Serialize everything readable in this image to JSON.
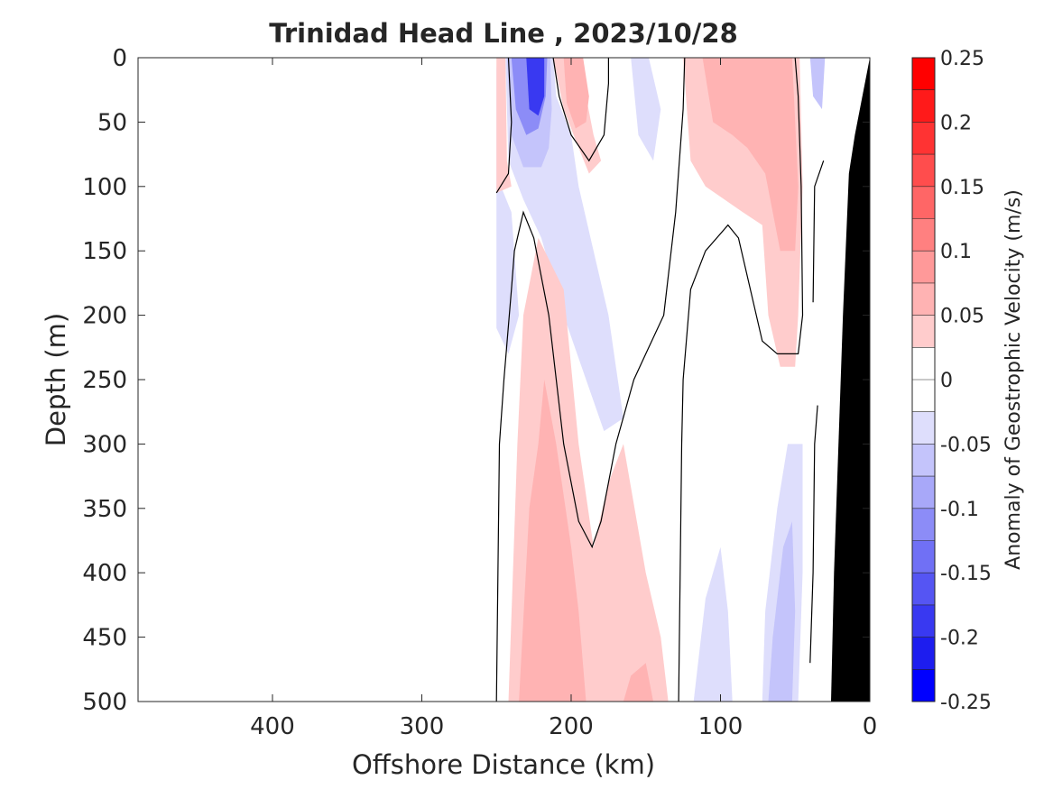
{
  "chart_data": {
    "type": "heatmap",
    "title": "Trinidad Head Line , 2023/10/28",
    "xlabel": "Offshore Distance (km)",
    "ylabel": "Depth (m)",
    "colorbar_label": "Anomaly of Geostrophic Velocity (m/s)",
    "x_reversed": true,
    "xlim": [
      490,
      0
    ],
    "ylim": [
      0,
      500
    ],
    "y_reversed": true,
    "x_ticks": [
      400,
      300,
      200,
      100,
      0
    ],
    "y_ticks": [
      0,
      50,
      100,
      150,
      200,
      250,
      300,
      350,
      400,
      450,
      500
    ],
    "colorbar_ticks": [
      0.25,
      0.2,
      0.15,
      0.1,
      0.05,
      0,
      -0.05,
      -0.1,
      -0.15,
      -0.2,
      -0.25
    ],
    "colorbar_levels": [
      {
        "from": 0.225,
        "to": 0.25,
        "color": "#ff0000"
      },
      {
        "from": 0.2,
        "to": 0.225,
        "color": "#ff1a1a"
      },
      {
        "from": 0.175,
        "to": 0.2,
        "color": "#ff3333"
      },
      {
        "from": 0.15,
        "to": 0.175,
        "color": "#ff4d4d"
      },
      {
        "from": 0.125,
        "to": 0.15,
        "color": "#ff6666"
      },
      {
        "from": 0.1,
        "to": 0.125,
        "color": "#ff8080"
      },
      {
        "from": 0.075,
        "to": 0.1,
        "color": "#ff9999"
      },
      {
        "from": 0.05,
        "to": 0.075,
        "color": "#ffb3b3"
      },
      {
        "from": 0.025,
        "to": 0.05,
        "color": "#ffcccc"
      },
      {
        "from": 0.0,
        "to": 0.025,
        "color": "#ffffff"
      },
      {
        "from": -0.025,
        "to": 0.0,
        "color": "#ffffff"
      },
      {
        "from": -0.05,
        "to": -0.025,
        "color": "#dedefc"
      },
      {
        "from": -0.075,
        "to": -0.05,
        "color": "#c4c4fb"
      },
      {
        "from": -0.1,
        "to": -0.075,
        "color": "#a8a8f9"
      },
      {
        "from": -0.125,
        "to": -0.1,
        "color": "#8c8cf7"
      },
      {
        "from": -0.15,
        "to": -0.125,
        "color": "#7070f5"
      },
      {
        "from": -0.175,
        "to": -0.15,
        "color": "#5555f3"
      },
      {
        "from": -0.2,
        "to": -0.175,
        "color": "#3939f1"
      },
      {
        "from": -0.225,
        "to": -0.2,
        "color": "#1d1def"
      },
      {
        "from": -0.25,
        "to": -0.225,
        "color": "#0000ff"
      }
    ],
    "bathymetry_color": "#000000",
    "regions": [
      {
        "name": "coastal-negative-strip",
        "color": "#dedefc",
        "points": [
          [
            250,
            5
          ],
          [
            247,
            100
          ],
          [
            240,
            120
          ],
          [
            235,
            200
          ],
          [
            242,
            230
          ],
          [
            250,
            210
          ]
        ]
      },
      {
        "name": "offshore-positive-edge",
        "color": "#ffcccc",
        "points": [
          [
            250,
            0
          ],
          [
            244,
            0
          ],
          [
            243,
            80
          ],
          [
            240,
            100
          ],
          [
            250,
            105
          ]
        ]
      },
      {
        "name": "main-negative-eddy-outer",
        "color": "#dedefc",
        "points": [
          [
            244,
            0
          ],
          [
            212,
            0
          ],
          [
            210,
            30
          ],
          [
            200,
            60
          ],
          [
            195,
            100
          ],
          [
            185,
            150
          ],
          [
            175,
            200
          ],
          [
            170,
            240
          ],
          [
            165,
            280
          ],
          [
            178,
            290
          ],
          [
            190,
            250
          ],
          [
            205,
            200
          ],
          [
            220,
            140
          ],
          [
            232,
            110
          ],
          [
            242,
            80
          ]
        ]
      },
      {
        "name": "main-negative-eddy-mid",
        "color": "#c4c4fb",
        "points": [
          [
            243,
            0
          ],
          [
            214,
            0
          ],
          [
            213,
            40
          ],
          [
            215,
            70
          ],
          [
            220,
            85
          ],
          [
            232,
            85
          ],
          [
            240,
            60
          ]
        ]
      },
      {
        "name": "main-negative-eddy-inner",
        "color": "#8c8cf7",
        "points": [
          [
            240,
            0
          ],
          [
            216,
            0
          ],
          [
            217,
            30
          ],
          [
            222,
            55
          ],
          [
            230,
            60
          ],
          [
            237,
            40
          ]
        ]
      },
      {
        "name": "main-negative-eddy-core",
        "color": "#3939f1",
        "points": [
          [
            230,
            0
          ],
          [
            218,
            0
          ],
          [
            218,
            30
          ],
          [
            222,
            45
          ],
          [
            228,
            40
          ]
        ]
      },
      {
        "name": "positive-lobe-center-top",
        "color": "#ffcccc",
        "points": [
          [
            212,
            0
          ],
          [
            197,
            0
          ],
          [
            190,
            30
          ],
          [
            185,
            60
          ],
          [
            180,
            80
          ],
          [
            188,
            90
          ],
          [
            195,
            70
          ],
          [
            205,
            40
          ]
        ]
      },
      {
        "name": "positive-lobe-center-mid",
        "color": "#ffb3b3",
        "points": [
          [
            205,
            0
          ],
          [
            192,
            0
          ],
          [
            188,
            30
          ],
          [
            190,
            50
          ],
          [
            197,
            55
          ],
          [
            203,
            35
          ]
        ]
      },
      {
        "name": "positive-deep-lobe-outer",
        "color": "#ffcccc",
        "points": [
          [
            242,
            500
          ],
          [
            236,
            300
          ],
          [
            232,
            200
          ],
          [
            222,
            140
          ],
          [
            205,
            180
          ],
          [
            195,
            300
          ],
          [
            185,
            380
          ],
          [
            175,
            330
          ],
          [
            165,
            300
          ],
          [
            150,
            400
          ],
          [
            140,
            450
          ],
          [
            135,
            500
          ]
        ]
      },
      {
        "name": "positive-deep-lobe-mid",
        "color": "#ffb3b3",
        "points": [
          [
            235,
            500
          ],
          [
            228,
            350
          ],
          [
            222,
            300
          ],
          [
            218,
            250
          ],
          [
            210,
            300
          ],
          [
            200,
            380
          ],
          [
            195,
            430
          ],
          [
            190,
            500
          ]
        ]
      },
      {
        "name": "positive-deep-lobe-right",
        "color": "#ffb3b3",
        "points": [
          [
            165,
            500
          ],
          [
            160,
            480
          ],
          [
            150,
            470
          ],
          [
            145,
            500
          ]
        ]
      },
      {
        "name": "coastal-negative-deep-left",
        "color": "#dedefc",
        "points": [
          [
            118,
            500
          ],
          [
            110,
            420
          ],
          [
            100,
            380
          ],
          [
            95,
            430
          ],
          [
            92,
            500
          ]
        ]
      },
      {
        "name": "coastal-negative-deep-mid",
        "color": "#dedefc",
        "points": [
          [
            72,
            500
          ],
          [
            70,
            430
          ],
          [
            62,
            350
          ],
          [
            55,
            300
          ],
          [
            45,
            300
          ],
          [
            45,
            400
          ],
          [
            48,
            500
          ]
        ]
      },
      {
        "name": "coastal-negative-deep-core",
        "color": "#c4c4fb",
        "points": [
          [
            68,
            500
          ],
          [
            65,
            450
          ],
          [
            58,
            380
          ],
          [
            52,
            360
          ],
          [
            50,
            430
          ],
          [
            52,
            500
          ]
        ]
      },
      {
        "name": "coastal-positive-upper-outer",
        "color": "#ffcccc",
        "points": [
          [
            125,
            0
          ],
          [
            120,
            80
          ],
          [
            110,
            100
          ],
          [
            85,
            120
          ],
          [
            72,
            130
          ],
          [
            68,
            200
          ],
          [
            60,
            240
          ],
          [
            50,
            240
          ],
          [
            48,
            200
          ],
          [
            45,
            100
          ],
          [
            47,
            0
          ]
        ]
      },
      {
        "name": "coastal-positive-upper-mid",
        "color": "#ffb3b3",
        "points": [
          [
            112,
            0
          ],
          [
            105,
            50
          ],
          [
            92,
            60
          ],
          [
            82,
            70
          ],
          [
            70,
            90
          ],
          [
            60,
            150
          ],
          [
            50,
            150
          ],
          [
            48,
            100
          ],
          [
            52,
            0
          ]
        ]
      },
      {
        "name": "coastal-negative-upper-right",
        "color": "#dedefc",
        "points": [
          [
            148,
            0
          ],
          [
            140,
            40
          ],
          [
            145,
            80
          ],
          [
            155,
            60
          ],
          [
            160,
            0
          ]
        ]
      },
      {
        "name": "coastal-negative-top-right",
        "color": "#c4c4fb",
        "points": [
          [
            40,
            0
          ],
          [
            30,
            0
          ],
          [
            32,
            40
          ],
          [
            38,
            30
          ]
        ]
      }
    ],
    "zero_contours": [
      {
        "name": "zero-contour-offshore",
        "points": [
          [
            250,
            105
          ],
          [
            242,
            90
          ],
          [
            240,
            50
          ],
          [
            242,
            0
          ]
        ]
      },
      {
        "name": "zero-contour-main-eddy",
        "points": [
          [
            250,
            500
          ],
          [
            248,
            300
          ],
          [
            245,
            250
          ],
          [
            240,
            180
          ],
          [
            238,
            150
          ],
          [
            232,
            120
          ],
          [
            225,
            140
          ],
          [
            215,
            200
          ],
          [
            205,
            300
          ],
          [
            195,
            360
          ],
          [
            186,
            380
          ],
          [
            180,
            360
          ],
          [
            170,
            300
          ],
          [
            158,
            250
          ],
          [
            150,
            230
          ],
          [
            138,
            200
          ],
          [
            130,
            120
          ],
          [
            125,
            40
          ],
          [
            124,
            0
          ]
        ]
      },
      {
        "name": "zero-contour-center-lobe",
        "points": [
          [
            212,
            0
          ],
          [
            208,
            30
          ],
          [
            200,
            60
          ],
          [
            188,
            80
          ],
          [
            178,
            60
          ],
          [
            175,
            20
          ],
          [
            175,
            0
          ]
        ]
      },
      {
        "name": "zero-contour-coastal-left",
        "points": [
          [
            128,
            500
          ],
          [
            127,
            400
          ],
          [
            126,
            300
          ],
          [
            125,
            250
          ],
          [
            120,
            180
          ],
          [
            110,
            150
          ],
          [
            95,
            130
          ],
          [
            88,
            140
          ],
          [
            80,
            180
          ],
          [
            72,
            220
          ],
          [
            62,
            230
          ],
          [
            48,
            230
          ],
          [
            45,
            200
          ],
          [
            46,
            100
          ],
          [
            48,
            30
          ],
          [
            50,
            0
          ]
        ]
      },
      {
        "name": "zero-contour-nearshore",
        "points": [
          [
            40,
            470
          ],
          [
            38,
            400
          ],
          [
            37,
            300
          ],
          [
            35,
            270
          ]
        ]
      },
      {
        "name": "zero-contour-nearshore-top",
        "points": [
          [
            38,
            190
          ],
          [
            37,
            100
          ],
          [
            31,
            80
          ]
        ]
      }
    ],
    "bathymetry": [
      [
        0,
        0
      ],
      [
        10,
        60
      ],
      [
        14,
        90
      ],
      [
        18,
        200
      ],
      [
        24,
        400
      ],
      [
        26,
        500
      ],
      [
        0,
        500
      ]
    ]
  }
}
